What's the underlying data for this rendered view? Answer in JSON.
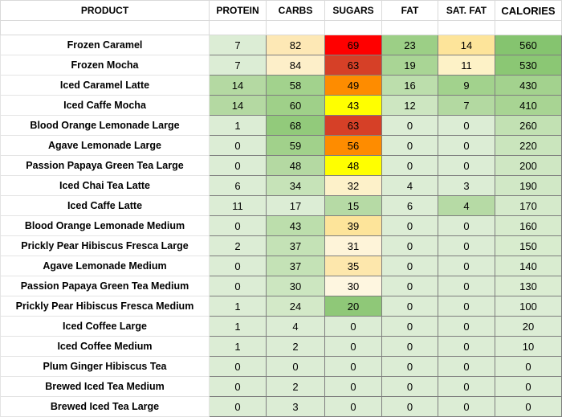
{
  "headers": {
    "product": "PRODUCT",
    "protein": "PROTEIN",
    "carbs": "CARBS",
    "sugars": "SUGARS",
    "fat": "FAT",
    "sat_fat": "SAT. FAT",
    "calories": "CALORIES"
  },
  "rows": [
    {
      "name": "Frozen Caramel",
      "protein": "7",
      "carbs": "82",
      "sugars": "69",
      "fat": "23",
      "sat_fat": "14",
      "calories": "560",
      "colors": {
        "protein": "#dcedd5",
        "carbs": "#fde8b5",
        "sugars": "#ff0000",
        "fat": "#9ccf86",
        "sat_fat": "#fde49a",
        "calories": "#85c46f"
      }
    },
    {
      "name": "Frozen Mocha",
      "protein": "7",
      "carbs": "84",
      "sugars": "63",
      "fat": "19",
      "sat_fat": "11",
      "calories": "530",
      "colors": {
        "protein": "#dcedd5",
        "carbs": "#fdefc9",
        "sugars": "#d64027",
        "fat": "#a9d595",
        "sat_fat": "#fdf2c7",
        "calories": "#8bc774"
      }
    },
    {
      "name": "Iced Caramel Latte",
      "protein": "14",
      "carbs": "58",
      "sugars": "49",
      "fat": "16",
      "sat_fat": "9",
      "calories": "430",
      "colors": {
        "protein": "#b4d9a2",
        "carbs": "#a2d28d",
        "sugars": "#fe8c00",
        "fat": "#bcdeac",
        "sat_fat": "#a2d28d",
        "calories": "#a3d28e"
      }
    },
    {
      "name": "Iced Caffe Mocha",
      "protein": "14",
      "carbs": "60",
      "sugars": "43",
      "fat": "12",
      "sat_fat": "7",
      "calories": "410",
      "colors": {
        "protein": "#b4d9a2",
        "carbs": "#9fd089",
        "sugars": "#ffff00",
        "fat": "#cde6c1",
        "sat_fat": "#b3d9a1",
        "calories": "#a8d493"
      }
    },
    {
      "name": "Blood Orange Lemonade Large",
      "protein": "1",
      "carbs": "68",
      "sugars": "63",
      "fat": "0",
      "sat_fat": "0",
      "calories": "260",
      "colors": {
        "protein": "#dcedd5",
        "carbs": "#92ca7b",
        "sugars": "#d64027",
        "fat": "#dcedd5",
        "sat_fat": "#dcedd5",
        "calories": "#c2e1b3"
      }
    },
    {
      "name": "Agave Lemonade Large",
      "protein": "0",
      "carbs": "59",
      "sugars": "56",
      "fat": "0",
      "sat_fat": "0",
      "calories": "220",
      "colors": {
        "protein": "#dcedd5",
        "carbs": "#a1d18b",
        "sugars": "#fe8c00",
        "fat": "#dcedd5",
        "sat_fat": "#dcedd5",
        "calories": "#cae5bd"
      }
    },
    {
      "name": "Passion Papaya Green Tea Large",
      "protein": "0",
      "carbs": "48",
      "sugars": "48",
      "fat": "0",
      "sat_fat": "0",
      "calories": "200",
      "colors": {
        "protein": "#dcedd5",
        "carbs": "#b4d9a2",
        "sugars": "#ffff00",
        "fat": "#dcedd5",
        "sat_fat": "#dcedd5",
        "calories": "#cfe7c3"
      }
    },
    {
      "name": "Iced Chai Tea Latte",
      "protein": "6",
      "carbs": "34",
      "sugars": "32",
      "fat": "4",
      "sat_fat": "3",
      "calories": "190",
      "colors": {
        "protein": "#dcedd5",
        "carbs": "#c6e3b8",
        "sugars": "#fdf1c9",
        "fat": "#dcedd5",
        "sat_fat": "#dcedd5",
        "calories": "#d1e8c6"
      }
    },
    {
      "name": "Iced Caffe Latte",
      "protein": "11",
      "carbs": "17",
      "sugars": "15",
      "fat": "6",
      "sat_fat": "4",
      "calories": "170",
      "colors": {
        "protein": "#dcedd5",
        "carbs": "#dcedd5",
        "sugars": "#b6daa5",
        "fat": "#dcedd5",
        "sat_fat": "#b6daa5",
        "calories": "#d5eacb"
      }
    },
    {
      "name": "Blood Orange Lemonade Medium",
      "protein": "0",
      "carbs": "43",
      "sugars": "39",
      "fat": "0",
      "sat_fat": "0",
      "calories": "160",
      "colors": {
        "protein": "#dcedd5",
        "carbs": "#bcdeac",
        "sugars": "#fde49a",
        "fat": "#dcedd5",
        "sat_fat": "#dcedd5",
        "calories": "#d7ebcd"
      }
    },
    {
      "name": "Prickly Pear Hibiscus Fresca Large",
      "protein": "2",
      "carbs": "37",
      "sugars": "31",
      "fat": "0",
      "sat_fat": "0",
      "calories": "150",
      "colors": {
        "protein": "#dcedd5",
        "carbs": "#c4e2b6",
        "sugars": "#fef4d9",
        "fat": "#dcedd5",
        "sat_fat": "#dcedd5",
        "calories": "#d8ecce"
      }
    },
    {
      "name": "Agave Lemonade Medium",
      "protein": "0",
      "carbs": "37",
      "sugars": "35",
      "fat": "0",
      "sat_fat": "0",
      "calories": "140",
      "colors": {
        "protein": "#dcedd5",
        "carbs": "#c4e2b6",
        "sugars": "#fde7ac",
        "fat": "#dcedd5",
        "sat_fat": "#dcedd5",
        "calories": "#d9ecd0"
      }
    },
    {
      "name": "Passion Papaya Green Tea Medium",
      "protein": "0",
      "carbs": "30",
      "sugars": "30",
      "fat": "0",
      "sat_fat": "0",
      "calories": "130",
      "colors": {
        "protein": "#dcedd5",
        "carbs": "#cce6c0",
        "sugars": "#fef6e0",
        "fat": "#dcedd5",
        "sat_fat": "#dcedd5",
        "calories": "#dbedd2"
      }
    },
    {
      "name": "Prickly Pear Hibiscus Fresca Medium",
      "protein": "1",
      "carbs": "24",
      "sugars": "20",
      "fat": "0",
      "sat_fat": "0",
      "calories": "100",
      "colors": {
        "protein": "#dcedd5",
        "carbs": "#d3e9c8",
        "sugars": "#8fc878",
        "fat": "#dcedd5",
        "sat_fat": "#dcedd5",
        "calories": "#dcedd5"
      }
    },
    {
      "name": "Iced Coffee Large",
      "protein": "1",
      "carbs": "4",
      "sugars": "0",
      "fat": "0",
      "sat_fat": "0",
      "calories": "20",
      "colors": {
        "protein": "#dcedd5",
        "carbs": "#dcedd5",
        "sugars": "#dcedd5",
        "fat": "#dcedd5",
        "sat_fat": "#dcedd5",
        "calories": "#dcedd5"
      }
    },
    {
      "name": "Iced Coffee Medium",
      "protein": "1",
      "carbs": "2",
      "sugars": "0",
      "fat": "0",
      "sat_fat": "0",
      "calories": "10",
      "colors": {
        "protein": "#dcedd5",
        "carbs": "#dcedd5",
        "sugars": "#dcedd5",
        "fat": "#dcedd5",
        "sat_fat": "#dcedd5",
        "calories": "#dcedd5"
      }
    },
    {
      "name": "Plum Ginger Hibiscus Tea",
      "protein": "0",
      "carbs": "0",
      "sugars": "0",
      "fat": "0",
      "sat_fat": "0",
      "calories": "0",
      "colors": {
        "protein": "#dcedd5",
        "carbs": "#dcedd5",
        "sugars": "#dcedd5",
        "fat": "#dcedd5",
        "sat_fat": "#dcedd5",
        "calories": "#dcedd5"
      }
    },
    {
      "name": "Brewed Iced Tea Medium",
      "protein": "0",
      "carbs": "2",
      "sugars": "0",
      "fat": "0",
      "sat_fat": "0",
      "calories": "0",
      "colors": {
        "protein": "#dcedd5",
        "carbs": "#dcedd5",
        "sugars": "#dcedd5",
        "fat": "#dcedd5",
        "sat_fat": "#dcedd5",
        "calories": "#dcedd5"
      }
    },
    {
      "name": "Brewed Iced Tea Large",
      "protein": "0",
      "carbs": "3",
      "sugars": "0",
      "fat": "0",
      "sat_fat": "0",
      "calories": "0",
      "colors": {
        "protein": "#dcedd5",
        "carbs": "#dcedd5",
        "sugars": "#dcedd5",
        "fat": "#dcedd5",
        "sat_fat": "#dcedd5",
        "calories": "#dcedd5"
      }
    }
  ]
}
